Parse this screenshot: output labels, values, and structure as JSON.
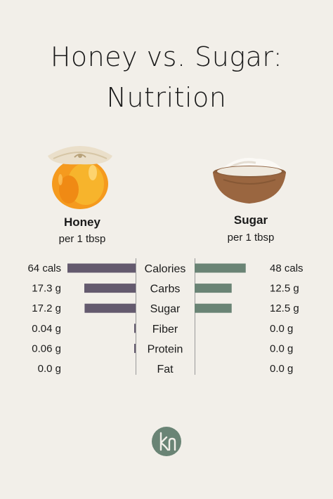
{
  "title": {
    "line1": "Honey vs. Sugar:",
    "line2": "Nutrition"
  },
  "honey": {
    "name": "Honey",
    "serving": "per 1 tbsp"
  },
  "sugar": {
    "name": "Sugar",
    "serving": "per 1 tbsp"
  },
  "colors": {
    "background": "#f2efe9",
    "honey_bar": "#645a6e",
    "sugar_bar": "#6a8475",
    "logo": "#6a8475",
    "divider": "#9a9a9a"
  },
  "icons": {
    "honey": "honey-jar-icon",
    "sugar": "sugar-bowl-icon",
    "logo": "kn-monogram-logo"
  },
  "chart_data": {
    "type": "bar",
    "categories": [
      "Calories",
      "Carbs",
      "Sugar",
      "Fiber",
      "Protein",
      "Fat"
    ],
    "series": [
      {
        "name": "Honey",
        "values": [
          64,
          17.3,
          17.2,
          0.04,
          0.06,
          0.0
        ],
        "labels": [
          "64 cals",
          "17.3 g",
          "17.2 g",
          "0.04 g",
          "0.06 g",
          "0.0 g"
        ]
      },
      {
        "name": "Sugar",
        "values": [
          48,
          12.5,
          12.5,
          0.0,
          0.0,
          0.0
        ],
        "labels": [
          "48 cals",
          "12.5 g",
          "12.5 g",
          "0.0 g",
          "0.0 g",
          "0.0 g"
        ]
      }
    ],
    "layout": "butterfly",
    "grid": false
  }
}
